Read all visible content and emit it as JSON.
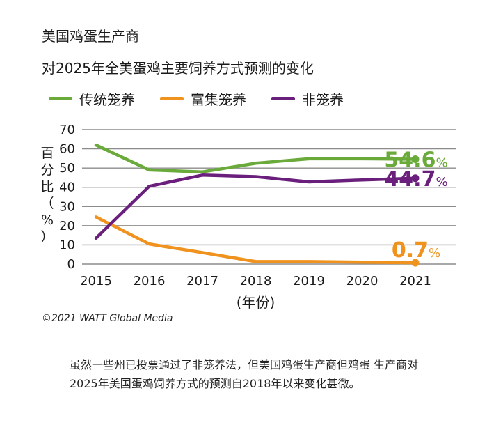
{
  "title": "美国鸡蛋生产商",
  "subtitle": "对2025年全美蛋鸡主要饲养方式预测的变化",
  "credit": "©2021 WATT Global Media",
  "note": "虽然一些州已投票通过了非笼养法，但美国鸡蛋生产商但鸡蛋 生产商对2025年美国蛋鸡饲养方式的预测自2018年以来变化甚微。",
  "chart_data": {
    "type": "line",
    "title": "对2025年全美蛋鸡主要饲养方式预测的变化",
    "xlabel": "(年份)",
    "ylabel": "百分比（%）",
    "x": [
      2015,
      2016,
      2017,
      2018,
      2019,
      2020,
      2021
    ],
    "x_tick_labels": [
      "2015",
      "2016",
      "2017",
      "2018",
      "2019",
      "2020",
      "2021"
    ],
    "ylim": [
      0,
      70
    ],
    "y_ticks": [
      0,
      10,
      20,
      30,
      40,
      50,
      60,
      70
    ],
    "grid": true,
    "legend_position": "top",
    "series": [
      {
        "name": "传统笼养",
        "color": "#6aaa3a",
        "values": [
          62,
          49,
          48,
          52.5,
          54.8,
          54.8,
          54.6
        ],
        "end_label_value": "54.6",
        "end_label_unit": "%"
      },
      {
        "name": "富集笼养",
        "color": "#f0921e",
        "values": [
          24.5,
          10.5,
          6,
          1.3,
          1.3,
          1,
          0.7
        ],
        "end_label_value": "0.7",
        "end_label_unit": "%"
      },
      {
        "name": "非笼养",
        "color": "#6b1f7c",
        "values": [
          13.5,
          40.5,
          46.3,
          45.5,
          42.8,
          43.8,
          44.7
        ],
        "end_label_value": "44.7",
        "end_label_unit": "%"
      }
    ]
  }
}
